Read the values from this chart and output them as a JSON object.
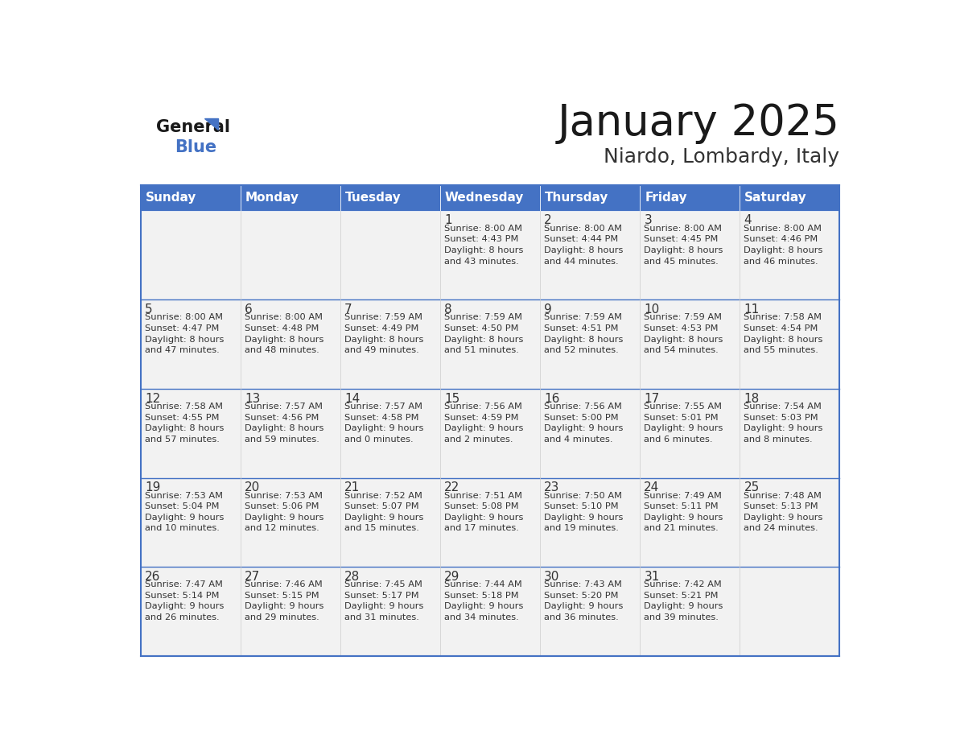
{
  "title": "January 2025",
  "subtitle": "Niardo, Lombardy, Italy",
  "days_of_week": [
    "Sunday",
    "Monday",
    "Tuesday",
    "Wednesday",
    "Thursday",
    "Friday",
    "Saturday"
  ],
  "header_bg": "#4472C4",
  "header_text": "#FFFFFF",
  "cell_bg": "#F2F2F2",
  "cell_text": "#333333",
  "border_color": "#4472C4",
  "row_divider_color": "#4472C4",
  "title_color": "#1a1a1a",
  "subtitle_color": "#333333",
  "logo_general_color": "#1a1a1a",
  "logo_blue_color": "#4472C4",
  "logo_triangle_color": "#4472C4",
  "calendar": [
    [
      {
        "day": null,
        "info": null
      },
      {
        "day": null,
        "info": null
      },
      {
        "day": null,
        "info": null
      },
      {
        "day": 1,
        "info": "Sunrise: 8:00 AM\nSunset: 4:43 PM\nDaylight: 8 hours\nand 43 minutes."
      },
      {
        "day": 2,
        "info": "Sunrise: 8:00 AM\nSunset: 4:44 PM\nDaylight: 8 hours\nand 44 minutes."
      },
      {
        "day": 3,
        "info": "Sunrise: 8:00 AM\nSunset: 4:45 PM\nDaylight: 8 hours\nand 45 minutes."
      },
      {
        "day": 4,
        "info": "Sunrise: 8:00 AM\nSunset: 4:46 PM\nDaylight: 8 hours\nand 46 minutes."
      }
    ],
    [
      {
        "day": 5,
        "info": "Sunrise: 8:00 AM\nSunset: 4:47 PM\nDaylight: 8 hours\nand 47 minutes."
      },
      {
        "day": 6,
        "info": "Sunrise: 8:00 AM\nSunset: 4:48 PM\nDaylight: 8 hours\nand 48 minutes."
      },
      {
        "day": 7,
        "info": "Sunrise: 7:59 AM\nSunset: 4:49 PM\nDaylight: 8 hours\nand 49 minutes."
      },
      {
        "day": 8,
        "info": "Sunrise: 7:59 AM\nSunset: 4:50 PM\nDaylight: 8 hours\nand 51 minutes."
      },
      {
        "day": 9,
        "info": "Sunrise: 7:59 AM\nSunset: 4:51 PM\nDaylight: 8 hours\nand 52 minutes."
      },
      {
        "day": 10,
        "info": "Sunrise: 7:59 AM\nSunset: 4:53 PM\nDaylight: 8 hours\nand 54 minutes."
      },
      {
        "day": 11,
        "info": "Sunrise: 7:58 AM\nSunset: 4:54 PM\nDaylight: 8 hours\nand 55 minutes."
      }
    ],
    [
      {
        "day": 12,
        "info": "Sunrise: 7:58 AM\nSunset: 4:55 PM\nDaylight: 8 hours\nand 57 minutes."
      },
      {
        "day": 13,
        "info": "Sunrise: 7:57 AM\nSunset: 4:56 PM\nDaylight: 8 hours\nand 59 minutes."
      },
      {
        "day": 14,
        "info": "Sunrise: 7:57 AM\nSunset: 4:58 PM\nDaylight: 9 hours\nand 0 minutes."
      },
      {
        "day": 15,
        "info": "Sunrise: 7:56 AM\nSunset: 4:59 PM\nDaylight: 9 hours\nand 2 minutes."
      },
      {
        "day": 16,
        "info": "Sunrise: 7:56 AM\nSunset: 5:00 PM\nDaylight: 9 hours\nand 4 minutes."
      },
      {
        "day": 17,
        "info": "Sunrise: 7:55 AM\nSunset: 5:01 PM\nDaylight: 9 hours\nand 6 minutes."
      },
      {
        "day": 18,
        "info": "Sunrise: 7:54 AM\nSunset: 5:03 PM\nDaylight: 9 hours\nand 8 minutes."
      }
    ],
    [
      {
        "day": 19,
        "info": "Sunrise: 7:53 AM\nSunset: 5:04 PM\nDaylight: 9 hours\nand 10 minutes."
      },
      {
        "day": 20,
        "info": "Sunrise: 7:53 AM\nSunset: 5:06 PM\nDaylight: 9 hours\nand 12 minutes."
      },
      {
        "day": 21,
        "info": "Sunrise: 7:52 AM\nSunset: 5:07 PM\nDaylight: 9 hours\nand 15 minutes."
      },
      {
        "day": 22,
        "info": "Sunrise: 7:51 AM\nSunset: 5:08 PM\nDaylight: 9 hours\nand 17 minutes."
      },
      {
        "day": 23,
        "info": "Sunrise: 7:50 AM\nSunset: 5:10 PM\nDaylight: 9 hours\nand 19 minutes."
      },
      {
        "day": 24,
        "info": "Sunrise: 7:49 AM\nSunset: 5:11 PM\nDaylight: 9 hours\nand 21 minutes."
      },
      {
        "day": 25,
        "info": "Sunrise: 7:48 AM\nSunset: 5:13 PM\nDaylight: 9 hours\nand 24 minutes."
      }
    ],
    [
      {
        "day": 26,
        "info": "Sunrise: 7:47 AM\nSunset: 5:14 PM\nDaylight: 9 hours\nand 26 minutes."
      },
      {
        "day": 27,
        "info": "Sunrise: 7:46 AM\nSunset: 5:15 PM\nDaylight: 9 hours\nand 29 minutes."
      },
      {
        "day": 28,
        "info": "Sunrise: 7:45 AM\nSunset: 5:17 PM\nDaylight: 9 hours\nand 31 minutes."
      },
      {
        "day": 29,
        "info": "Sunrise: 7:44 AM\nSunset: 5:18 PM\nDaylight: 9 hours\nand 34 minutes."
      },
      {
        "day": 30,
        "info": "Sunrise: 7:43 AM\nSunset: 5:20 PM\nDaylight: 9 hours\nand 36 minutes."
      },
      {
        "day": 31,
        "info": "Sunrise: 7:42 AM\nSunset: 5:21 PM\nDaylight: 9 hours\nand 39 minutes."
      },
      {
        "day": null,
        "info": null
      }
    ]
  ]
}
